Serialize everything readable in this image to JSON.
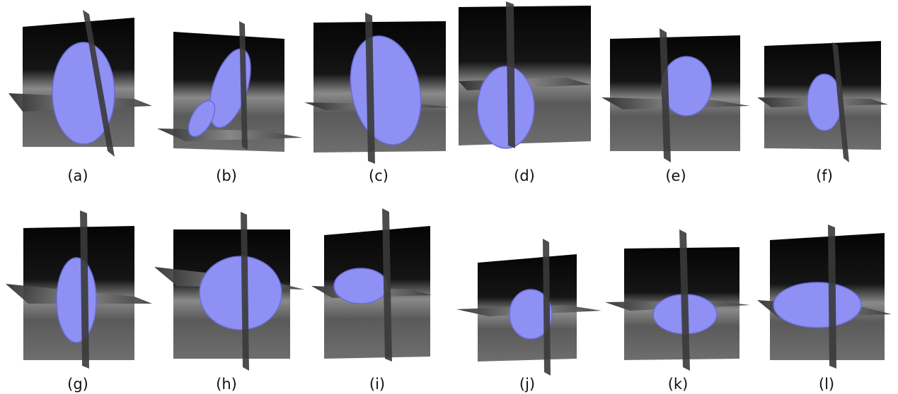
{
  "panels": [
    {
      "label": "(a)"
    },
    {
      "label": "(b)"
    },
    {
      "label": "(c)"
    },
    {
      "label": "(d)"
    },
    {
      "label": "(e)"
    },
    {
      "label": "(f)"
    },
    {
      "label": "(g)"
    },
    {
      "label": "(h)"
    },
    {
      "label": "(i)"
    },
    {
      "label": "(j)"
    },
    {
      "label": "(k)"
    },
    {
      "label": "(l)"
    }
  ]
}
